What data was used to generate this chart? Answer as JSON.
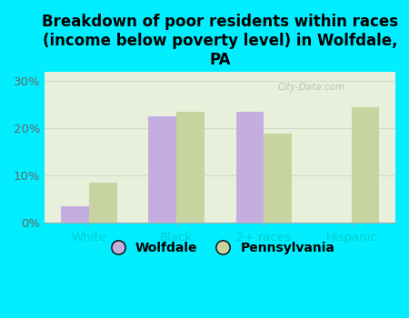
{
  "title": "Breakdown of poor residents within races\n(income below poverty level) in Wolfdale,\nPA",
  "categories": [
    "White",
    "Black",
    "2+ races",
    "Hispanic"
  ],
  "wolfdale_values": [
    3.5,
    22.5,
    23.5,
    0.0
  ],
  "pennsylvania_values": [
    8.5,
    23.5,
    19.0,
    24.5
  ],
  "wolfdale_color": "#c4aee0",
  "pennsylvania_color": "#c8d4a0",
  "background_color": "#00eeff",
  "plot_bg_top": "#e8f0dc",
  "plot_bg_bottom": "#c8e8c8",
  "ylim": [
    0,
    32
  ],
  "yticks": [
    0,
    10,
    20,
    30
  ],
  "yticklabels": [
    "0%",
    "10%",
    "20%",
    "30%"
  ],
  "title_fontsize": 12,
  "tick_fontsize": 9.5,
  "legend_fontsize": 10,
  "bar_width": 0.32,
  "legend_labels": [
    "Wolfdale",
    "Pennsylvania"
  ],
  "watermark": "City-Data.com",
  "xticklabel_color": "#00cccc",
  "ytick_color": "#666666",
  "grid_color": "#ccddcc"
}
